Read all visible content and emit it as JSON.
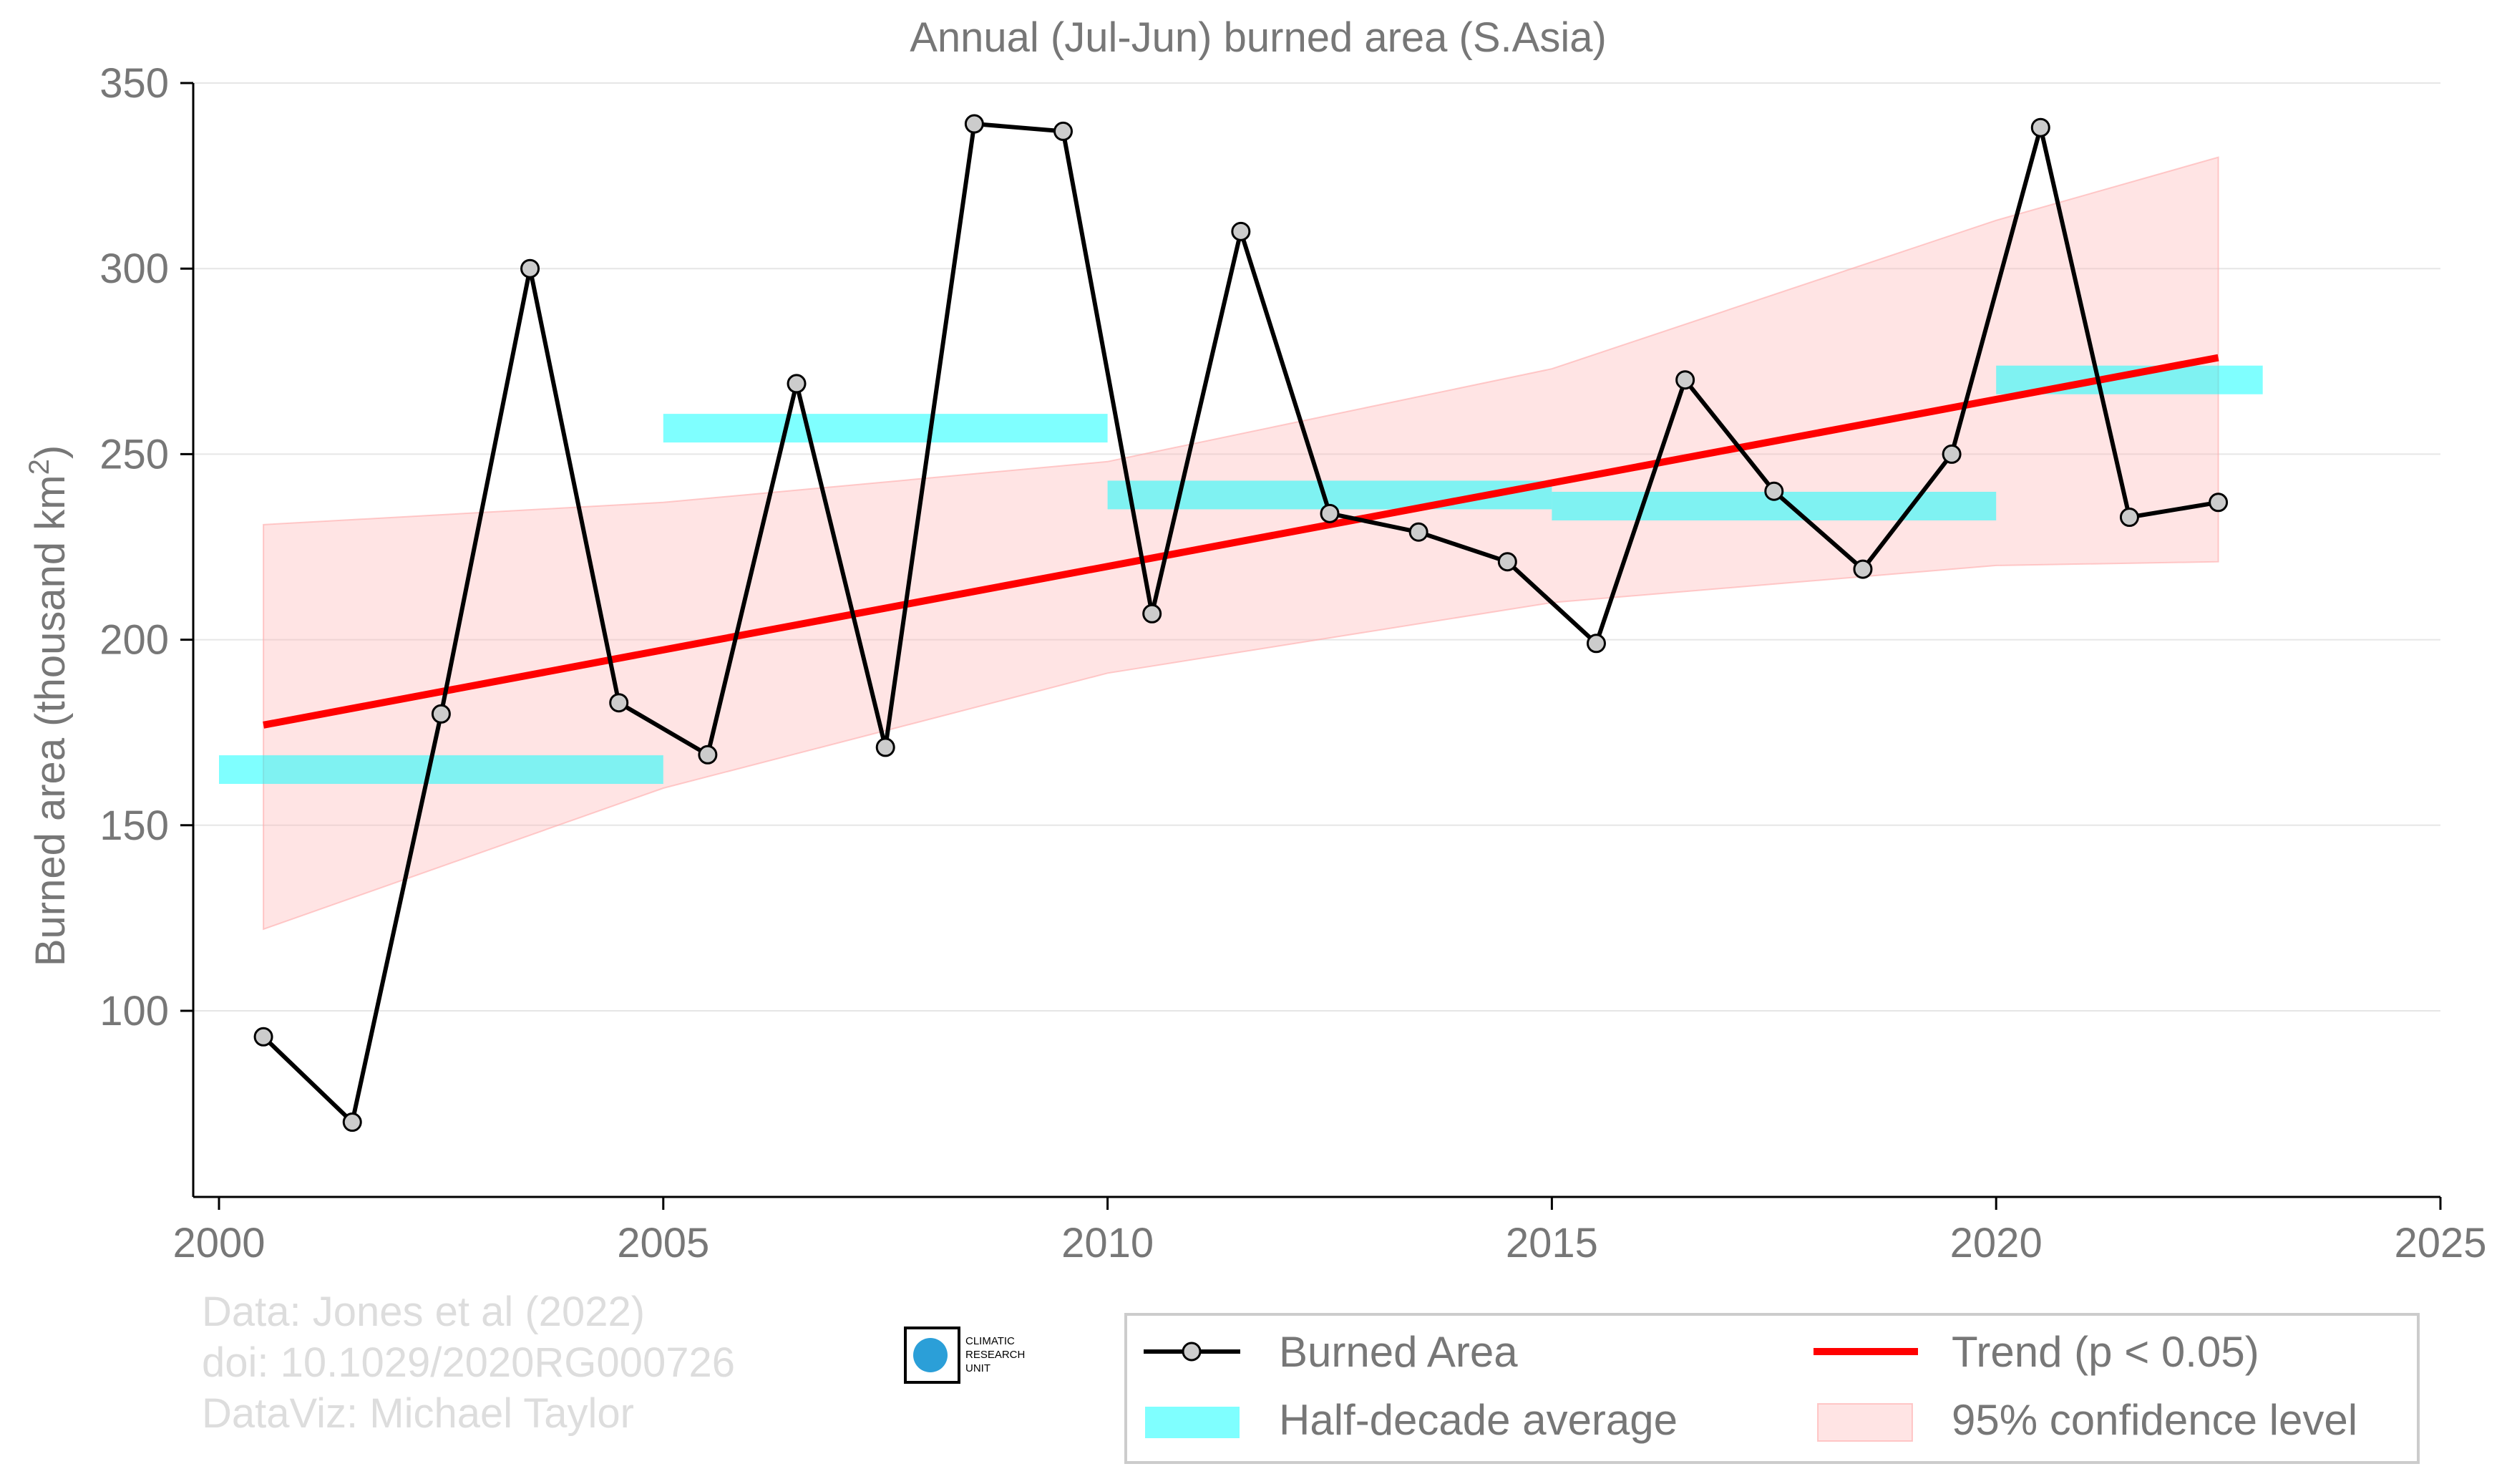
{
  "chart_data": {
    "type": "line",
    "title": "Annual (Jul-Jun) burned area (S.Asia)",
    "ylabel": "Burned area (thousand km",
    "ylabel_sup": "2",
    "ylabel_close": ")",
    "xlim": [
      2000,
      2025
    ],
    "ylim": [
      50,
      350
    ],
    "xticks": [
      2000,
      2005,
      2010,
      2015,
      2020,
      2025
    ],
    "yticks": [
      100,
      150,
      200,
      250,
      300,
      350
    ],
    "grid": "horizontal",
    "legend_position": "bottom-right",
    "series": [
      {
        "name": "Burned Area",
        "color": "#000000",
        "marker_fill": "#cccccc",
        "x": [
          2000.5,
          2001.5,
          2002.5,
          2003.5,
          2004.5,
          2005.5,
          2006.5,
          2007.5,
          2008.5,
          2009.5,
          2010.5,
          2011.5,
          2012.5,
          2013.5,
          2014.5,
          2015.5,
          2016.5,
          2017.5,
          2018.5,
          2019.5,
          2020.5,
          2021.5,
          2022.5
        ],
        "y": [
          93,
          70,
          180,
          300,
          183,
          169,
          269,
          171,
          339,
          337,
          207,
          310,
          234,
          229,
          221,
          199,
          270,
          240,
          219,
          250,
          338,
          233,
          237
        ]
      },
      {
        "name": "Half-decade average",
        "color": "#00ffff",
        "segments": [
          {
            "x0": 2000,
            "x1": 2005,
            "y": 165
          },
          {
            "x0": 2005,
            "x1": 2010,
            "y": 257
          },
          {
            "x0": 2010,
            "x1": 2015,
            "y": 239
          },
          {
            "x0": 2015,
            "x1": 2020,
            "y": 236
          },
          {
            "x0": 2020,
            "x1": 2023,
            "y": 270
          }
        ]
      },
      {
        "name": "Trend (p < 0.05)",
        "color": "#ff0000",
        "x": [
          2000.5,
          2022.5
        ],
        "y": [
          177,
          276
        ]
      },
      {
        "name": "95% confidence level",
        "color": "#ffcccc",
        "x": [
          2000.5,
          2005,
          2010,
          2015,
          2020,
          2022.5
        ],
        "lower": [
          122,
          160,
          191,
          210,
          220,
          221
        ],
        "upper": [
          231,
          237,
          248,
          273,
          313,
          330
        ]
      }
    ],
    "legend": [
      "Burned Area",
      "Half-decade average",
      "Trend (p < 0.05)",
      "95% confidence level"
    ]
  },
  "credits": {
    "line1": "Data: Jones et al (2022)",
    "line2": "doi: 10.1029/2020RG000726",
    "line3": "DataViz: Michael Taylor"
  },
  "logo": {
    "line1": "CLIMATIC",
    "line2": "RESEARCH",
    "line3": "UNIT"
  }
}
